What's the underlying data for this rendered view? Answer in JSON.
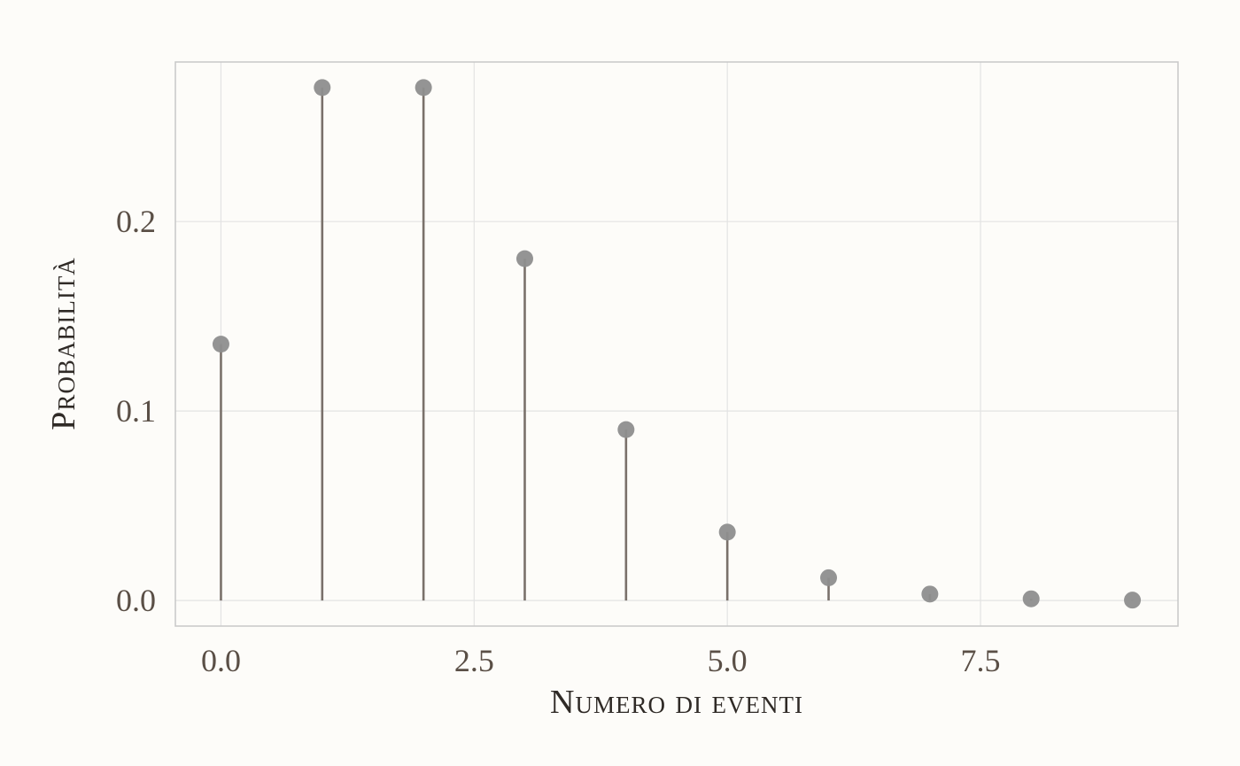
{
  "chart_data": {
    "type": "lollipop",
    "xlabel": "Numero di eventi",
    "ylabel": "Probabilità",
    "x": [
      0,
      1,
      2,
      3,
      4,
      5,
      6,
      7,
      8,
      9
    ],
    "values": [
      0.1353,
      0.2707,
      0.2707,
      0.1804,
      0.0902,
      0.0361,
      0.012,
      0.0034,
      0.0009,
      0.0002
    ],
    "xlim": [
      -0.45,
      9.45
    ],
    "ylim": [
      -0.0135,
      0.2842
    ],
    "xticks": [
      0.0,
      2.5,
      5.0,
      7.5
    ],
    "xtick_labels": [
      "0.0",
      "2.5",
      "5.0",
      "7.5"
    ],
    "yticks": [
      0.0,
      0.1,
      0.2
    ],
    "ytick_labels": [
      "0.0",
      "0.1",
      "0.2"
    ],
    "grid": true,
    "colors": {
      "background": "#fdfcf9",
      "panel_border": "#c8c8c8",
      "grid": "#e3e3e3",
      "stem": "#7a716b",
      "point": "#8e8e8e",
      "tick_text": "#5a4f46",
      "title_text": "#2f2a26"
    }
  }
}
